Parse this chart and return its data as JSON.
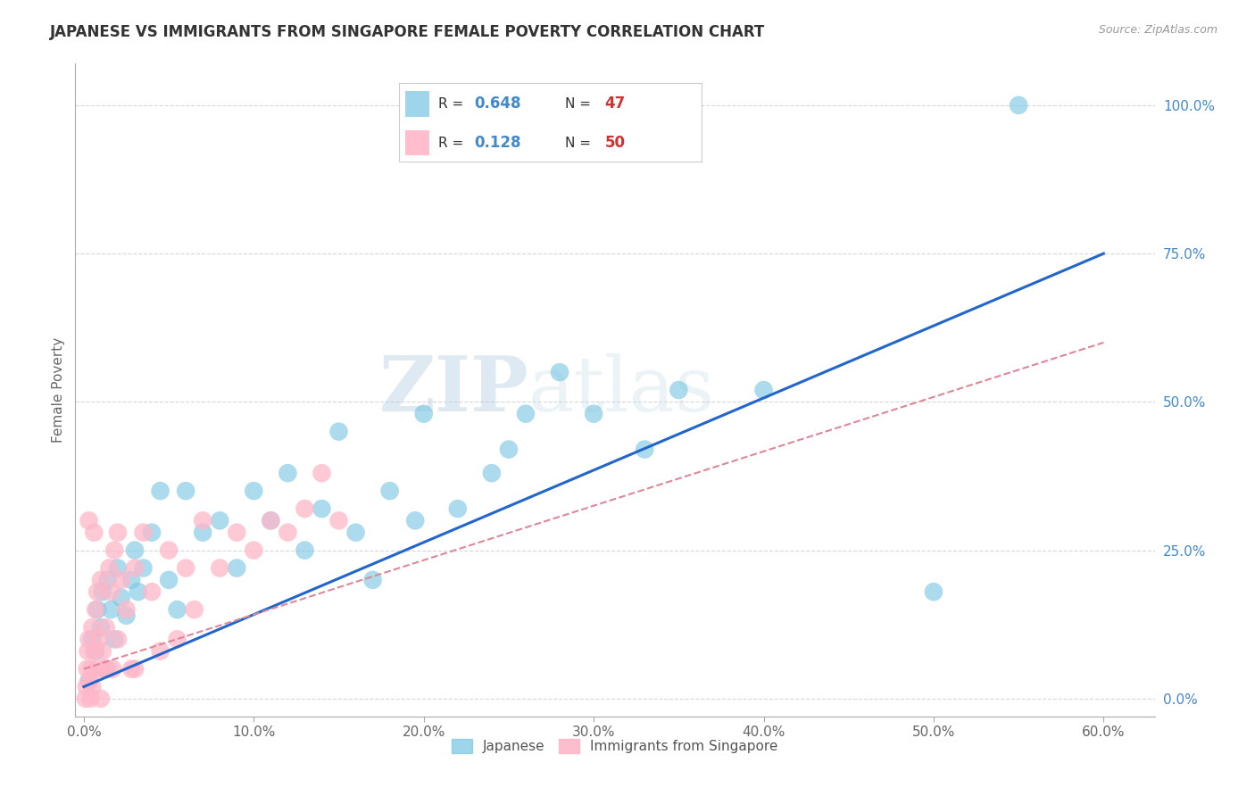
{
  "title": "JAPANESE VS IMMIGRANTS FROM SINGAPORE FEMALE POVERTY CORRELATION CHART",
  "source": "Source: ZipAtlas.com",
  "xlabel_vals": [
    0,
    10,
    20,
    30,
    40,
    50,
    60
  ],
  "ylabel": "Female Poverty",
  "ylabel_vals": [
    0,
    25,
    50,
    75,
    100
  ],
  "xlim": [
    -0.5,
    63
  ],
  "ylim": [
    -3,
    107
  ],
  "blue_color": "#7ec8e3",
  "pink_color": "#ffb6c8",
  "trendline_blue": "#2266cc",
  "trendline_pink": "#dd8899",
  "watermark_zip": "ZIP",
  "watermark_atlas": "atlas",
  "japanese_x": [
    0.3,
    0.5,
    0.7,
    0.8,
    1.0,
    1.1,
    1.3,
    1.4,
    1.6,
    1.8,
    2.0,
    2.2,
    2.5,
    2.8,
    3.0,
    3.2,
    3.5,
    4.0,
    4.5,
    5.0,
    5.5,
    6.0,
    7.0,
    8.0,
    9.0,
    10.0,
    11.0,
    12.0,
    13.0,
    14.0,
    15.0,
    16.0,
    17.0,
    18.0,
    19.5,
    20.0,
    22.0,
    24.0,
    25.0,
    26.0,
    28.0,
    30.0,
    33.0,
    35.0,
    40.0,
    50.0,
    55.0
  ],
  "japanese_y": [
    3,
    10,
    8,
    15,
    12,
    18,
    5,
    20,
    15,
    10,
    22,
    17,
    14,
    20,
    25,
    18,
    22,
    28,
    35,
    20,
    15,
    35,
    28,
    30,
    22,
    35,
    30,
    38,
    25,
    32,
    45,
    28,
    20,
    35,
    30,
    48,
    32,
    38,
    42,
    48,
    55,
    48,
    42,
    52,
    52,
    18,
    100
  ],
  "singapore_x": [
    0.1,
    0.15,
    0.2,
    0.25,
    0.3,
    0.35,
    0.4,
    0.45,
    0.5,
    0.5,
    0.6,
    0.7,
    0.8,
    0.8,
    0.9,
    1.0,
    1.0,
    1.1,
    1.2,
    1.3,
    1.4,
    1.5,
    1.6,
    1.7,
    1.8,
    2.0,
    2.0,
    2.2,
    2.5,
    2.8,
    3.0,
    3.5,
    4.0,
    5.0,
    6.0,
    7.0,
    8.0,
    9.0,
    10.0,
    11.0,
    12.0,
    13.0,
    14.0,
    15.0,
    3.0,
    4.5,
    5.5,
    6.5,
    0.3,
    0.6
  ],
  "singapore_y": [
    0,
    2,
    5,
    8,
    10,
    3,
    0,
    5,
    12,
    2,
    8,
    15,
    5,
    18,
    10,
    0,
    20,
    8,
    5,
    12,
    5,
    22,
    18,
    5,
    25,
    28,
    10,
    20,
    15,
    5,
    22,
    28,
    18,
    25,
    22,
    30,
    22,
    28,
    25,
    30,
    28,
    32,
    38,
    30,
    5,
    8,
    10,
    15,
    30,
    28
  ],
  "j_trend_x0": 0,
  "j_trend_y0": 2,
  "j_trend_x1": 60,
  "j_trend_y1": 75,
  "s_trend_x0": 0,
  "s_trend_y0": 5,
  "s_trend_x1": 60,
  "s_trend_y1": 60
}
